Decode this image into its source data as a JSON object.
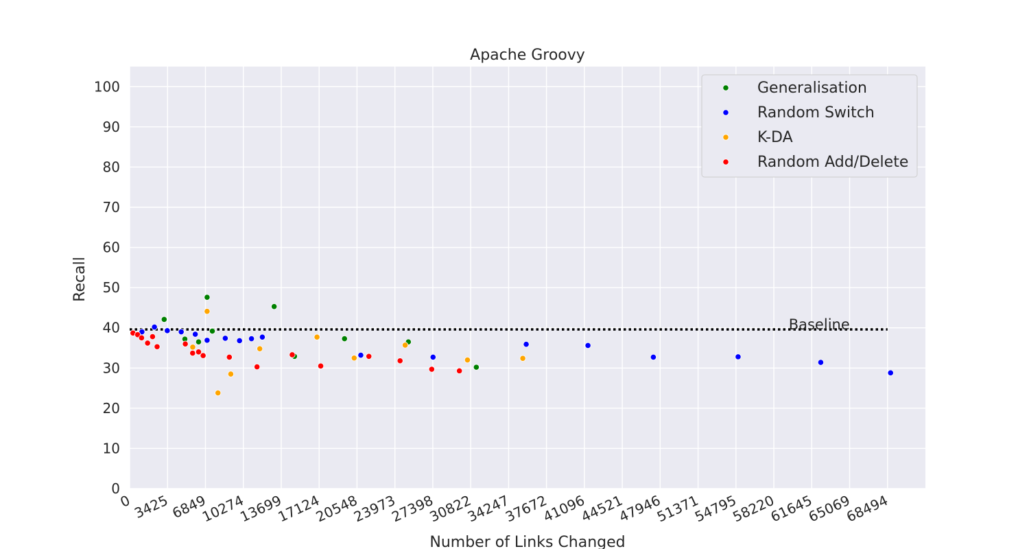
{
  "chart_data": {
    "type": "scatter",
    "title": "Apache Groovy",
    "xlabel": "Number of Links Changed",
    "ylabel": "Recall",
    "xlim": [
      0,
      71918
    ],
    "ylim": [
      0,
      105
    ],
    "x_ticks": [
      0,
      3425,
      6849,
      10274,
      13699,
      17124,
      20548,
      23973,
      27398,
      30822,
      34247,
      37672,
      41096,
      44521,
      47946,
      51371,
      54795,
      58220,
      61645,
      65069,
      68494
    ],
    "x_tick_labels": [
      "0",
      "3425",
      "6849",
      "10274",
      "13699",
      "17124",
      "20548",
      "23973",
      "27398",
      "30822",
      "34247",
      "37672",
      "41096",
      "44521",
      "47946",
      "51371",
      "54795",
      "58220",
      "61645",
      "65069",
      "68494"
    ],
    "y_ticks": [
      0,
      10,
      20,
      30,
      40,
      50,
      60,
      70,
      80,
      90,
      100
    ],
    "y_tick_labels": [
      "0",
      "10",
      "20",
      "30",
      "40",
      "50",
      "60",
      "70",
      "80",
      "90",
      "100"
    ],
    "grid": true,
    "legend_position": "top-right",
    "baseline": {
      "label": "Baseline",
      "value": 39.6,
      "x_range": [
        0,
        68494
      ]
    },
    "series": [
      {
        "name": "Generalisation",
        "color": "#008000",
        "points": [
          [
            3120,
            42.1
          ],
          [
            4990,
            37.2
          ],
          [
            6230,
            36.5
          ],
          [
            7000,
            47.6
          ],
          [
            7470,
            39.2
          ],
          [
            13060,
            45.3
          ],
          [
            14900,
            32.9
          ],
          [
            19420,
            37.3
          ],
          [
            25190,
            36.5
          ],
          [
            31330,
            30.2
          ]
        ]
      },
      {
        "name": "Random Switch",
        "color": "#0000ff",
        "points": [
          [
            1110,
            39.0
          ],
          [
            2240,
            40.2
          ],
          [
            3400,
            39.3
          ],
          [
            4660,
            39.0
          ],
          [
            5930,
            38.4
          ],
          [
            7000,
            36.9
          ],
          [
            8640,
            37.4
          ],
          [
            9930,
            36.8
          ],
          [
            11010,
            37.3
          ],
          [
            11990,
            37.7
          ],
          [
            20890,
            33.2
          ],
          [
            27420,
            32.7
          ],
          [
            35840,
            35.9
          ],
          [
            41420,
            35.6
          ],
          [
            47330,
            32.7
          ],
          [
            54990,
            32.8
          ],
          [
            62460,
            31.4
          ],
          [
            68770,
            28.8
          ]
        ]
      },
      {
        "name": "K-DA",
        "color": "#ffa500",
        "points": [
          [
            5700,
            35.2
          ],
          [
            7000,
            44.1
          ],
          [
            7980,
            23.8
          ],
          [
            9140,
            28.5
          ],
          [
            11760,
            34.8
          ],
          [
            16930,
            37.7
          ],
          [
            20290,
            32.5
          ],
          [
            24900,
            35.7
          ],
          [
            30530,
            32.0
          ],
          [
            35530,
            32.4
          ]
        ]
      },
      {
        "name": "Random Add/Delete",
        "color": "#ff0000",
        "points": [
          [
            300,
            38.7
          ],
          [
            720,
            38.3
          ],
          [
            1080,
            37.5
          ],
          [
            1620,
            36.2
          ],
          [
            2070,
            37.8
          ],
          [
            2480,
            35.3
          ],
          [
            5030,
            36.0
          ],
          [
            5690,
            33.7
          ],
          [
            6230,
            34.0
          ],
          [
            6640,
            33.1
          ],
          [
            9010,
            32.7
          ],
          [
            11510,
            30.3
          ],
          [
            14690,
            33.3
          ],
          [
            17270,
            30.5
          ],
          [
            21620,
            32.9
          ],
          [
            24440,
            31.8
          ],
          [
            27300,
            29.7
          ],
          [
            29800,
            29.3
          ]
        ]
      }
    ]
  }
}
